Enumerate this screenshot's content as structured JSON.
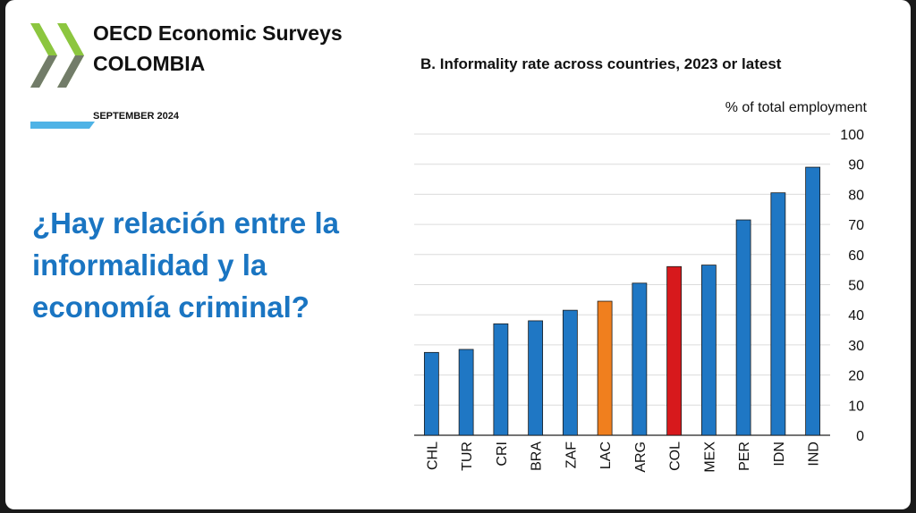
{
  "header": {
    "title": "OECD Economic Surveys",
    "country": "COLOMBIA",
    "date": "SEPTEMBER 2024"
  },
  "question": "¿Hay relación entre la informalidad y la economía criminal?",
  "colors": {
    "question_text": "#1a75c2",
    "bar_default": "#1f77c4",
    "bar_lac": "#f07f1e",
    "bar_col": "#d7191c",
    "logo_green": "#8cc63f",
    "logo_grey": "#6d6e71",
    "logo_blue": "#4fb3e6"
  },
  "icons": {
    "logo": "oecd-logo-icon"
  },
  "chart_data": {
    "type": "bar",
    "title": "B. Informality rate across countries, 2023 or latest",
    "ylabel": "% of total employment",
    "categories": [
      "CHL",
      "TUR",
      "CRI",
      "BRA",
      "ZAF",
      "LAC",
      "ARG",
      "COL",
      "MEX",
      "PER",
      "IDN",
      "IND"
    ],
    "values": [
      27.5,
      28.5,
      37,
      38,
      41.5,
      44.5,
      50.5,
      56,
      56.5,
      71.5,
      80.5,
      89
    ],
    "highlight": {
      "LAC": "#f07f1e",
      "COL": "#d7191c"
    },
    "ylim": [
      0,
      100
    ],
    "yticks": [
      0,
      10,
      20,
      30,
      40,
      50,
      60,
      70,
      80,
      90,
      100
    ],
    "y_axis_side": "right",
    "grid": true,
    "legend": "none"
  }
}
